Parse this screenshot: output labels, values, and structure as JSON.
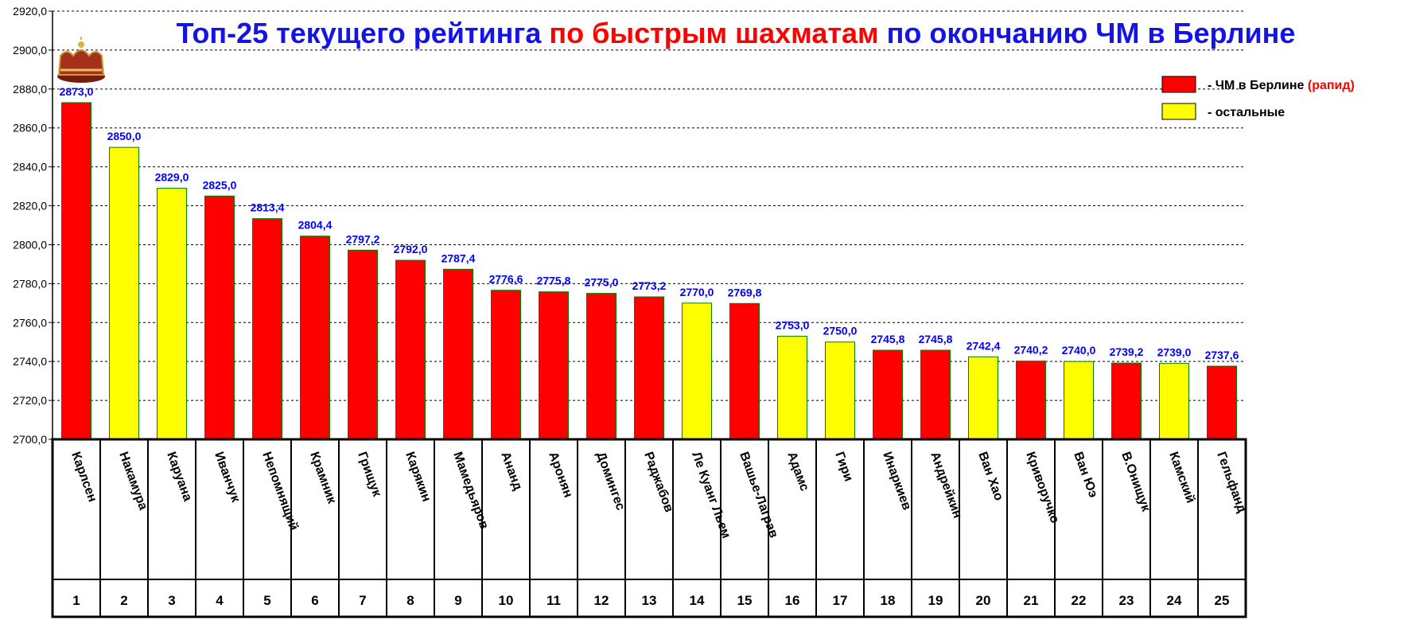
{
  "colors": {
    "red": "#ff0000",
    "yellow": "#ffff00",
    "title_blue": "#1414e6",
    "title_red": "#ff0000",
    "label_blue": "#0000ff"
  },
  "chart_data": {
    "type": "bar",
    "title_parts": [
      {
        "text": "Топ-25 текущего рейтинга ",
        "color": "blue"
      },
      {
        "text": "по быстрым шахматам",
        "color": "red"
      },
      {
        "text": " по окончанию ЧМ в Берлине",
        "color": "blue"
      }
    ],
    "ylim": [
      2700,
      2920
    ],
    "yticks": [
      "2700,0",
      "2720,0",
      "2740,0",
      "2760,0",
      "2780,0",
      "2800,0",
      "2820,0",
      "2840,0",
      "2860,0",
      "2880,0",
      "2900,0",
      "2920,0"
    ],
    "grid": true,
    "legend_position": "top-right",
    "legend": [
      {
        "color": "red",
        "label": "- ЧМ в Берлине ",
        "label_extra": "(рапид)"
      },
      {
        "color": "yellow",
        "label": "- остальные",
        "label_extra": ""
      }
    ],
    "icon": "crown-icon",
    "categories": [
      "Карлсен",
      "Накамура",
      "Каруана",
      "Иванчук",
      "Непомнящий",
      "Крамник",
      "Грищук",
      "Карякин",
      "Мамедьяров",
      "Ананд",
      "Аронян",
      "Домингес",
      "Раджабов",
      "Ле Куанг Льем",
      "Вашье-Лаграв",
      "Адамс",
      "Гири",
      "Инаркиев",
      "Андрейкин",
      "Ван Хао",
      "Криворучко",
      "Ван Юэ",
      "В.Онищук",
      "Камский",
      "Гельфанд"
    ],
    "ranks": [
      "1",
      "2",
      "3",
      "4",
      "5",
      "6",
      "7",
      "8",
      "9",
      "10",
      "11",
      "12",
      "13",
      "14",
      "15",
      "16",
      "17",
      "18",
      "19",
      "20",
      "21",
      "22",
      "23",
      "24",
      "25"
    ],
    "values": [
      2873.0,
      2850.0,
      2829.0,
      2825.0,
      2813.4,
      2804.4,
      2797.2,
      2792.0,
      2787.4,
      2776.6,
      2775.8,
      2775.0,
      2773.2,
      2770.0,
      2769.8,
      2753.0,
      2750.0,
      2745.8,
      2745.8,
      2742.4,
      2740.2,
      2740.0,
      2739.2,
      2739.0,
      2737.6
    ],
    "value_labels": [
      "2873,0",
      "2850,0",
      "2829,0",
      "2825,0",
      "2813,4",
      "2804,4",
      "2797,2",
      "2792,0",
      "2787,4",
      "2776,6",
      "2775,8",
      "2775,0",
      "2773,2",
      "2770,0",
      "2769,8",
      "2753,0",
      "2750,0",
      "2745,8",
      "2745,8",
      "2742,4",
      "2740,2",
      "2740,0",
      "2739,2",
      "2739,0",
      "2737,6"
    ],
    "bar_colors": [
      "red",
      "yellow",
      "yellow",
      "red",
      "red",
      "red",
      "red",
      "red",
      "red",
      "red",
      "red",
      "red",
      "red",
      "yellow",
      "red",
      "yellow",
      "yellow",
      "red",
      "red",
      "yellow",
      "red",
      "yellow",
      "red",
      "yellow",
      "red"
    ]
  }
}
